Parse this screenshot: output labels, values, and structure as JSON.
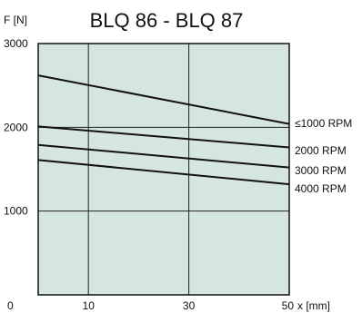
{
  "chart_data": {
    "type": "line",
    "title": "BLQ 86  -  BLQ 87",
    "ylabel": "F [N]",
    "xlabel": "x [mm]",
    "xlim": [
      0,
      50
    ],
    "ylim": [
      0,
      3000
    ],
    "x_ticks": [
      {
        "value": 0,
        "label": "0"
      },
      {
        "value": 10,
        "label": "10"
      },
      {
        "value": 30,
        "label": "30"
      },
      {
        "value": 50,
        "label": "50"
      }
    ],
    "y_ticks": [
      {
        "value": 1000,
        "label": "1000"
      },
      {
        "value": 2000,
        "label": "2000"
      },
      {
        "value": 3000,
        "label": "3000"
      }
    ],
    "grid": true,
    "background_color": "#d4e6de",
    "line_color": "#111111",
    "series": [
      {
        "name": "≤1000  RPM",
        "x": [
          0,
          50
        ],
        "y": [
          2620,
          2040
        ]
      },
      {
        "name": "2000  RPM",
        "x": [
          0,
          50
        ],
        "y": [
          2010,
          1760
        ]
      },
      {
        "name": "3000  RPM",
        "x": [
          0,
          50
        ],
        "y": [
          1790,
          1520
        ]
      },
      {
        "name": "4000  RPM",
        "x": [
          0,
          50
        ],
        "y": [
          1610,
          1320
        ]
      }
    ],
    "legend": "right"
  }
}
